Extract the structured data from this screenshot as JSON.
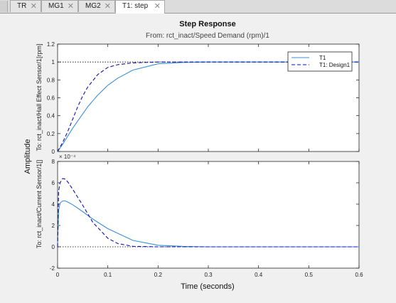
{
  "tabs": [
    {
      "label": "TR",
      "active": false
    },
    {
      "label": "MG1",
      "active": false
    },
    {
      "label": "MG2",
      "active": false
    },
    {
      "label": "T1: step",
      "active": true
    }
  ],
  "icons": {
    "close": "close-icon"
  },
  "chart_data": {
    "type": "line",
    "title": "Step Response",
    "subtitle": "From: rct_inact/Speed Demand (rpm)/1",
    "xlabel": "Time (seconds)",
    "ylabel": "Amplitude",
    "xlim": [
      0,
      0.6
    ],
    "xticks": [
      "0",
      "0.1",
      "0.2",
      "0.3",
      "0.4",
      "0.5",
      "0.6"
    ],
    "legend": {
      "placement": "top-right",
      "entries": [
        "T1",
        "T1: Design1"
      ]
    },
    "colors": {
      "T1": "#3a8fd8",
      "T1: Design1": "#1010b0"
    },
    "subplots": [
      {
        "ylabel": "To: rct_inact/Hall Effect Sensor/1[rpm]",
        "ylim": [
          0,
          1.2
        ],
        "yticks": [
          "0",
          "0.2",
          "0.4",
          "0.6",
          "0.8",
          "1",
          "1.2"
        ],
        "reference": 1,
        "series": [
          {
            "name": "T1",
            "x": [
              0,
              0.01,
              0.02,
              0.03,
              0.04,
              0.05,
              0.06,
              0.08,
              0.1,
              0.12,
              0.15,
              0.2,
              0.25,
              0.3,
              0.4,
              0.5,
              0.6
            ],
            "values": [
              0,
              0.08,
              0.17,
              0.26,
              0.34,
              0.42,
              0.5,
              0.63,
              0.74,
              0.82,
              0.91,
              0.98,
              0.995,
              1,
              1,
              1,
              1
            ]
          },
          {
            "name": "T1: Design1",
            "x": [
              0,
              0.01,
              0.02,
              0.03,
              0.04,
              0.05,
              0.06,
              0.08,
              0.1,
              0.12,
              0.15,
              0.2,
              0.25,
              0.3,
              0.4,
              0.5,
              0.6
            ],
            "values": [
              0,
              0.1,
              0.22,
              0.36,
              0.5,
              0.62,
              0.72,
              0.86,
              0.94,
              0.97,
              0.99,
              1,
              1,
              1,
              1,
              1,
              1
            ]
          }
        ]
      },
      {
        "ylabel": "To: rct_inact/Current Sensor/1[]",
        "ylim": [
          -2,
          8
        ],
        "yticks": [
          "-2",
          "0",
          "2",
          "4",
          "6",
          "8"
        ],
        "exponent": "× 10⁻⁴",
        "reference": 0,
        "series": [
          {
            "name": "T1",
            "x": [
              0,
              0.002,
              0.005,
              0.01,
              0.015,
              0.02,
              0.03,
              0.05,
              0.07,
              0.1,
              0.15,
              0.2,
              0.25,
              0.3,
              0.4,
              0.5,
              0.6
            ],
            "values": [
              0,
              3.4,
              4.1,
              4.3,
              4.3,
              4.2,
              3.95,
              3.3,
              2.6,
              1.7,
              0.6,
              0.15,
              0.04,
              0,
              0,
              0,
              0
            ]
          },
          {
            "name": "T1: Design1",
            "x": [
              0,
              0.002,
              0.005,
              0.01,
              0.015,
              0.02,
              0.03,
              0.05,
              0.07,
              0.1,
              0.12,
              0.15,
              0.2,
              0.3,
              0.4,
              0.5,
              0.6
            ],
            "values": [
              0,
              5.2,
              6.0,
              6.4,
              6.35,
              6.1,
              5.4,
              3.9,
              2.3,
              0.8,
              0.3,
              0.05,
              0,
              0,
              0,
              0,
              0
            ]
          }
        ]
      }
    ]
  }
}
